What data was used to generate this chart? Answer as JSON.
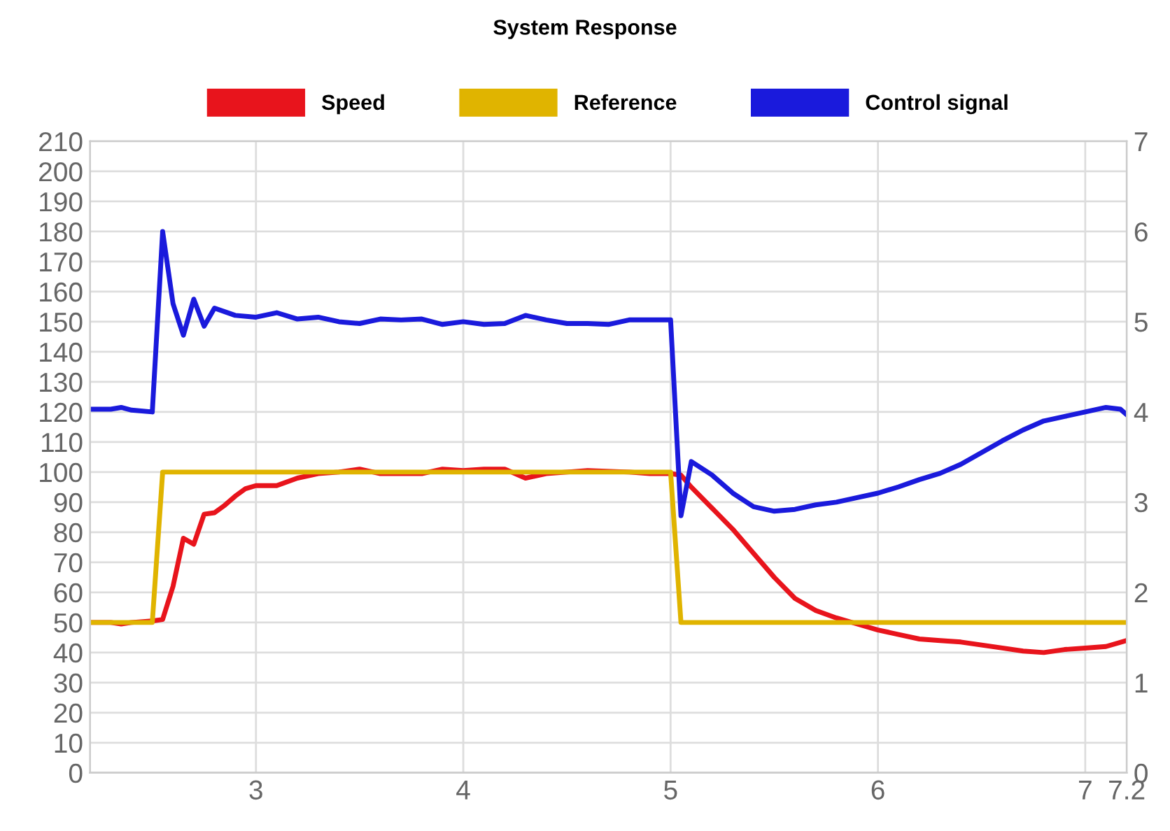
{
  "chart_data": {
    "type": "line",
    "title": "System Response",
    "legend": "top",
    "grid": true,
    "marker": "none",
    "line_style": "solid",
    "xlim": [
      2.2,
      7.2
    ],
    "xticks": [
      3,
      4,
      5,
      6,
      7,
      7.2
    ],
    "ylim": [
      0,
      210
    ],
    "yticks": [
      0,
      10,
      20,
      30,
      40,
      50,
      60,
      70,
      80,
      90,
      100,
      110,
      120,
      130,
      140,
      150,
      160,
      170,
      180,
      190,
      200,
      210
    ],
    "y2lim": [
      0,
      7
    ],
    "y2ticks": [
      0,
      1,
      2,
      3,
      4,
      5,
      6,
      7
    ],
    "series": [
      {
        "name": "Speed",
        "color": "#e8141c",
        "x": [
          2.2,
          2.3,
          2.35,
          2.4,
          2.5,
          2.55,
          2.6,
          2.65,
          2.7,
          2.75,
          2.8,
          2.85,
          2.9,
          2.95,
          3.0,
          3.1,
          3.2,
          3.3,
          3.4,
          3.5,
          3.6,
          3.7,
          3.8,
          3.9,
          4.0,
          4.1,
          4.2,
          4.3,
          4.4,
          4.5,
          4.6,
          4.8,
          4.9,
          5.0,
          5.05,
          5.1,
          5.2,
          5.3,
          5.4,
          5.5,
          5.6,
          5.7,
          5.8,
          5.9,
          6.0,
          6.1,
          6.2,
          6.3,
          6.4,
          6.5,
          6.6,
          6.7,
          6.8,
          6.9,
          7.0,
          7.1,
          7.2
        ],
        "values": [
          50,
          50,
          49.5,
          50,
          50.5,
          51,
          62,
          78,
          76,
          86,
          86.5,
          89,
          92,
          94.5,
          95.5,
          95.5,
          98,
          99.5,
          100,
          101,
          99.5,
          99.5,
          99.5,
          101,
          100.5,
          101,
          101,
          98,
          99.5,
          100,
          100.5,
          100,
          99.5,
          99.5,
          99,
          95,
          88,
          81,
          73,
          65,
          58,
          54,
          51.5,
          49.5,
          47.5,
          46,
          44.5,
          44,
          43.5,
          42.5,
          41.5,
          40.5,
          40,
          41,
          41.5,
          42,
          44
        ]
      },
      {
        "name": "Reference",
        "color": "#e0b400",
        "x": [
          2.2,
          2.5,
          2.55,
          5.0,
          5.05,
          7.2
        ],
        "values": [
          50,
          50,
          100,
          100,
          50,
          50
        ]
      },
      {
        "name": "Control signal",
        "color": "#1a1adc",
        "axis": "y2",
        "x": [
          2.2,
          2.3,
          2.35,
          2.4,
          2.5,
          2.55,
          2.6,
          2.65,
          2.7,
          2.75,
          2.8,
          2.9,
          3.0,
          3.1,
          3.2,
          3.3,
          3.4,
          3.5,
          3.6,
          3.7,
          3.8,
          3.9,
          4.0,
          4.1,
          4.2,
          4.3,
          4.4,
          4.5,
          4.6,
          4.7,
          4.8,
          5.0,
          5.05,
          5.1,
          5.2,
          5.3,
          5.4,
          5.5,
          5.6,
          5.7,
          5.8,
          5.9,
          6.0,
          6.1,
          6.2,
          6.3,
          6.4,
          6.5,
          6.6,
          6.7,
          6.8,
          6.9,
          7.0,
          7.1,
          7.17,
          7.2
        ],
        "values": [
          4.03,
          4.03,
          4.05,
          4.02,
          4.0,
          6.0,
          5.2,
          4.85,
          5.25,
          4.95,
          5.15,
          5.07,
          5.05,
          5.1,
          5.03,
          5.05,
          5.0,
          4.98,
          5.03,
          5.02,
          5.03,
          4.97,
          5.0,
          4.97,
          4.98,
          5.07,
          5.02,
          4.98,
          4.98,
          4.97,
          5.02,
          5.02,
          2.85,
          3.45,
          3.3,
          3.1,
          2.95,
          2.9,
          2.92,
          2.97,
          3.0,
          3.05,
          3.1,
          3.17,
          3.25,
          3.32,
          3.42,
          3.55,
          3.68,
          3.8,
          3.9,
          3.95,
          4.0,
          4.05,
          4.03,
          3.97
        ]
      }
    ]
  }
}
